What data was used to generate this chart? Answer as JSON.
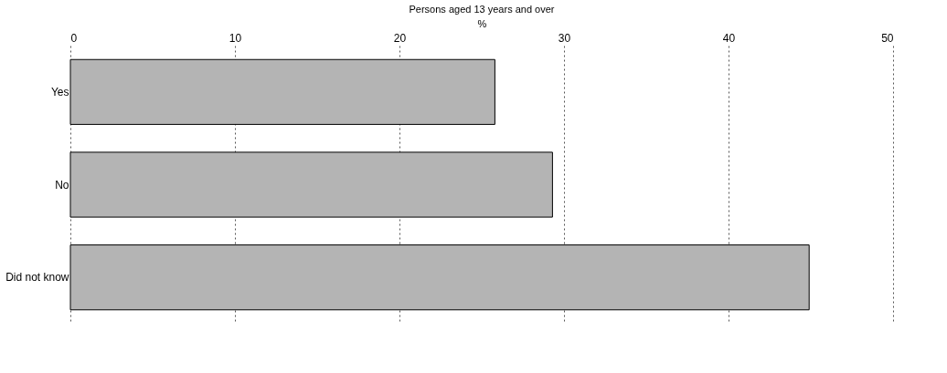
{
  "chart_data": {
    "type": "bar",
    "orientation": "horizontal",
    "title": "Persons aged 13 years and over",
    "xlabel": "%",
    "categories": [
      "Yes",
      "No",
      "Did not know"
    ],
    "values": [
      25.8,
      29.3,
      44.9
    ],
    "color": "#b4b4b4",
    "xlim": [
      0,
      50
    ],
    "xticks": [
      0,
      10,
      20,
      30,
      40,
      50
    ],
    "grid": "x"
  }
}
